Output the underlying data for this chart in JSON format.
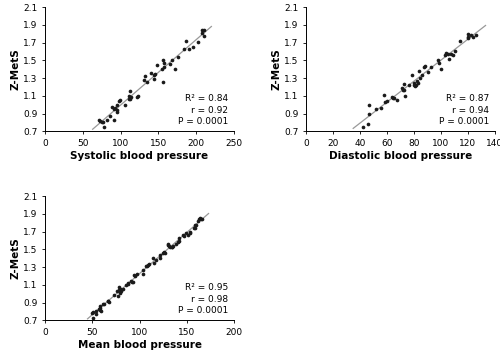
{
  "panels": [
    {
      "xlabel": "Systolic blood pressure",
      "ylabel": "Z-MetS",
      "xlim": [
        0,
        250
      ],
      "ylim": [
        0.7,
        2.1
      ],
      "xticks": [
        0,
        50,
        100,
        150,
        200,
        250
      ],
      "yticks": [
        0.7,
        0.9,
        1.1,
        1.3,
        1.5,
        1.7,
        1.9,
        2.1
      ],
      "r2": "0.84",
      "r": "0.92",
      "p": "0.0001",
      "seed": 42,
      "slope": 0.0073,
      "intercept": 0.27,
      "noise": 0.06,
      "x_min": 68,
      "x_max": 215,
      "n_points": 50
    },
    {
      "xlabel": "Diastolic blood pressure",
      "ylabel": "Z-MetS",
      "xlim": [
        0,
        140
      ],
      "ylim": [
        0.7,
        2.1
      ],
      "xticks": [
        0,
        20,
        40,
        60,
        80,
        100,
        120,
        140
      ],
      "yticks": [
        0.7,
        0.9,
        1.1,
        1.3,
        1.5,
        1.7,
        1.9,
        2.1
      ],
      "r2": "0.87",
      "r": "0.94",
      "p": "0.0001",
      "seed": 7,
      "slope": 0.0115,
      "intercept": 0.345,
      "noise": 0.05,
      "x_min": 40,
      "x_max": 128,
      "n_points": 50
    },
    {
      "xlabel": "Mean blood pressure",
      "ylabel": "Z-MetS",
      "xlim": [
        0,
        200
      ],
      "ylim": [
        0.7,
        2.1
      ],
      "xticks": [
        0,
        50,
        100,
        150,
        200
      ],
      "yticks": [
        0.7,
        0.9,
        1.1,
        1.3,
        1.5,
        1.7,
        1.9,
        2.1
      ],
      "r2": "0.95",
      "r": "0.98",
      "p": "0.0001",
      "seed": 13,
      "slope": 0.0093,
      "intercept": 0.3,
      "noise": 0.03,
      "x_min": 50,
      "x_max": 168,
      "n_points": 75
    }
  ],
  "dot_color": "#1a1a1a",
  "line_color": "#999999",
  "dot_size": 7,
  "annotation_fontsize": 6.5,
  "axis_label_fontsize": 7.5,
  "tick_fontsize": 6.5
}
